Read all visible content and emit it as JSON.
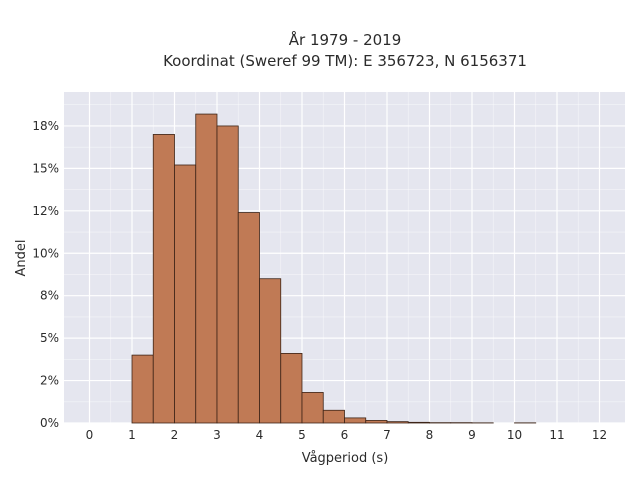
{
  "chart_data": {
    "type": "bar",
    "title_line1": "År 1979 - 2019",
    "title_line2": "Koordinat (Sweref 99 TM): E 356723, N 6156371",
    "xlabel": "Vågperiod (s)",
    "ylabel": "Andel",
    "xlim": [
      -0.6,
      12.6
    ],
    "ylim": [
      0,
      0.195
    ],
    "x_ticks": [
      0,
      1,
      2,
      3,
      4,
      5,
      6,
      7,
      8,
      9,
      10,
      11,
      12
    ],
    "x_tick_labels": [
      "0",
      "1",
      "2",
      "3",
      "4",
      "5",
      "6",
      "7",
      "8",
      "9",
      "10",
      "11",
      "12"
    ],
    "y_ticks": [
      0,
      0.025,
      0.05,
      0.075,
      0.1,
      0.125,
      0.15,
      0.175
    ],
    "y_tick_labels": [
      "0%",
      "2%",
      "5%",
      "8%",
      "10%",
      "12%",
      "15%",
      "18%"
    ],
    "bin_width": 0.5,
    "bins": [
      {
        "start": 1.0,
        "value": 0.04
      },
      {
        "start": 1.5,
        "value": 0.17
      },
      {
        "start": 2.0,
        "value": 0.152
      },
      {
        "start": 2.5,
        "value": 0.182
      },
      {
        "start": 3.0,
        "value": 0.175
      },
      {
        "start": 3.5,
        "value": 0.124
      },
      {
        "start": 4.0,
        "value": 0.085
      },
      {
        "start": 4.5,
        "value": 0.041
      },
      {
        "start": 5.0,
        "value": 0.018
      },
      {
        "start": 5.5,
        "value": 0.0075
      },
      {
        "start": 6.0,
        "value": 0.003
      },
      {
        "start": 6.5,
        "value": 0.0015
      },
      {
        "start": 7.0,
        "value": 0.0008
      },
      {
        "start": 7.5,
        "value": 0.0004
      },
      {
        "start": 8.0,
        "value": 0.0002
      },
      {
        "start": 8.5,
        "value": 0.0002
      },
      {
        "start": 9.0,
        "value": 0.0001
      },
      {
        "start": 10.0,
        "value": 0.0001
      }
    ],
    "grid": true,
    "colors": {
      "bar_fill": "#c07a55",
      "bar_edge": "#3d2417",
      "plot_bg": "#e5e6ef",
      "grid": "#ffffff"
    }
  }
}
